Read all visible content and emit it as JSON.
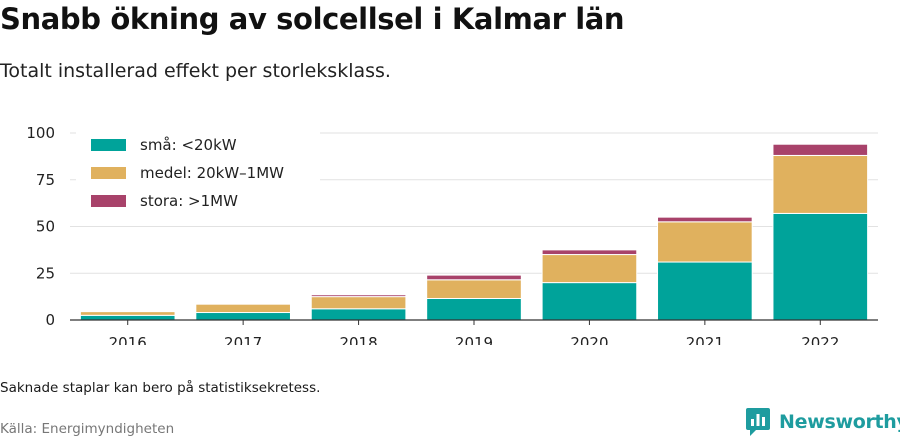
{
  "header": {
    "title": "Snabb ökning av solcellsel i Kalmar län",
    "subtitle": "Totalt installerad effekt per storleksklass."
  },
  "footer": {
    "note": "Saknade staplar kan bero på statistiksekretess.",
    "source": "Källa: Energimyndigheten",
    "brand": "Newsworthy"
  },
  "chart_data": {
    "type": "bar",
    "stacked": true,
    "title": "Snabb ökning av solcellsel i Kalmar län",
    "subtitle": "Totalt installerad effekt per storleksklass.",
    "xlabel": "",
    "ylabel": "",
    "categories": [
      "2016",
      "2017",
      "2018",
      "2019",
      "2020",
      "2021",
      "2022"
    ],
    "ylim": [
      0,
      100
    ],
    "yticks": [
      0,
      25,
      50,
      75,
      100
    ],
    "grid": true,
    "legend_position": "top-left",
    "series": [
      {
        "name": "små: <20kW",
        "color": "#00a39a",
        "values": [
          2.5,
          4.0,
          6.0,
          11.5,
          20.0,
          31.0,
          57.0
        ]
      },
      {
        "name": "medel: 20kW–1MW",
        "color": "#e0b15e",
        "values": [
          2.0,
          4.5,
          6.5,
          10.0,
          15.0,
          21.5,
          31.0
        ]
      },
      {
        "name": "stora: >1MW",
        "color": "#a8426a",
        "values": [
          0.2,
          0.3,
          1.0,
          2.5,
          2.5,
          2.5,
          6.0
        ]
      }
    ]
  }
}
